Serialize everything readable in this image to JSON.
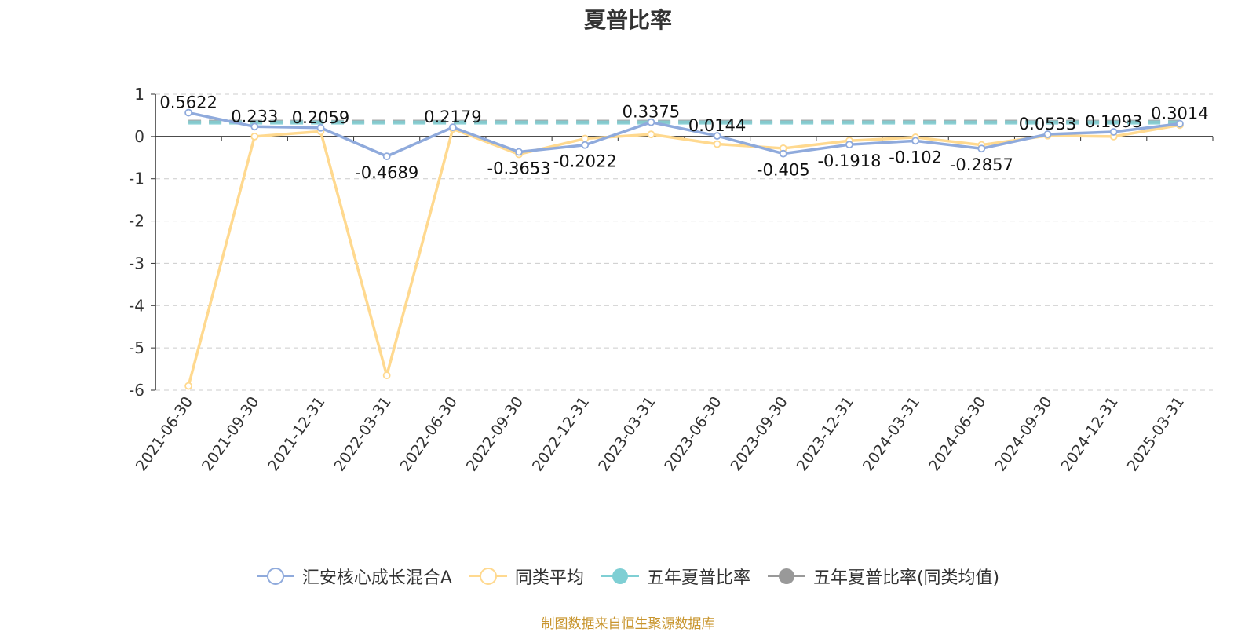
{
  "chart_data": {
    "type": "line",
    "title": "夏普比率",
    "categories": [
      "2021-06-30",
      "2021-09-30",
      "2021-12-31",
      "2022-03-31",
      "2022-06-30",
      "2022-09-30",
      "2022-12-31",
      "2023-03-31",
      "2023-06-30",
      "2023-09-30",
      "2023-12-31",
      "2024-03-31",
      "2024-06-30",
      "2024-09-30",
      "2024-12-31",
      "2025-03-31"
    ],
    "ylim": [
      -6,
      1
    ],
    "yticks": [
      1,
      0,
      -1,
      -2,
      -3,
      -4,
      -5,
      -6
    ],
    "grid": true,
    "legend_position": "bottom",
    "series": [
      {
        "name": "汇安核心成长混合A",
        "color": "#8faadc",
        "style": "line",
        "values": [
          0.5622,
          0.233,
          0.2059,
          -0.4689,
          0.2179,
          -0.3653,
          -0.2022,
          0.3375,
          0.0144,
          -0.405,
          -0.1918,
          -0.102,
          -0.2857,
          0.0533,
          0.1093,
          0.3014
        ],
        "labels": [
          "0.5622",
          "0.233",
          "0.2059",
          "-0.4689",
          "0.2179",
          "-0.3653",
          "-0.2022",
          "0.3375",
          "0.0144",
          "-0.405",
          "-0.1918",
          "-0.102",
          "-0.2857",
          "0.0533",
          "0.1093",
          "0.3014"
        ]
      },
      {
        "name": "同类平均",
        "color": "#ffd98f",
        "style": "line",
        "values": [
          -5.9,
          0.0,
          0.12,
          -5.65,
          0.18,
          -0.42,
          -0.05,
          0.05,
          -0.18,
          -0.28,
          -0.1,
          -0.02,
          -0.2,
          0.02,
          0.0,
          0.27
        ]
      },
      {
        "name": "五年夏普比率",
        "color": "#7fcfd4",
        "style": "dashed",
        "values": [
          0.33,
          0.33,
          0.33,
          0.33,
          0.33,
          0.33,
          0.33,
          0.33,
          0.33,
          0.33,
          0.33,
          0.33,
          0.33,
          0.33,
          0.33,
          0.33
        ]
      },
      {
        "name": "五年夏普比率(同类均值)",
        "color": "#999999",
        "style": "dashed",
        "values": [
          0.35,
          0.35,
          0.35,
          0.35,
          0.35,
          0.35,
          0.35,
          0.35,
          0.35,
          0.35,
          0.35,
          0.35,
          0.35,
          0.35,
          0.35,
          0.35
        ]
      }
    ]
  },
  "legend": [
    {
      "label": "汇安核心成长混合A",
      "color": "#8faadc",
      "marker": "hollow"
    },
    {
      "label": "同类平均",
      "color": "#ffd98f",
      "marker": "hollow"
    },
    {
      "label": "五年夏普比率",
      "color": "#7fcfd4",
      "marker": "filled"
    },
    {
      "label": "五年夏普比率(同类均值)",
      "color": "#999999",
      "marker": "filled"
    }
  ],
  "source_note": "制图数据来自恒生聚源数据库"
}
